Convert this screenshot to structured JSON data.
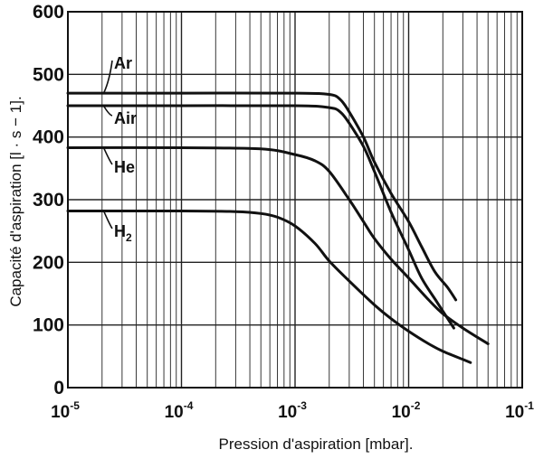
{
  "chart_data": {
    "type": "line",
    "xlabel": "Pression d'aspiration [mbar].",
    "ylabel": "Capacité d'aspiration [l · s − 1].",
    "x_scale": "log",
    "xlim": [
      1e-05,
      0.1
    ],
    "ylim": [
      0,
      600
    ],
    "grid": true,
    "x_ticks": [
      {
        "base": "10",
        "exp": "-5"
      },
      {
        "base": "10",
        "exp": "-4"
      },
      {
        "base": "10",
        "exp": "-3"
      },
      {
        "base": "10",
        "exp": "-2"
      },
      {
        "base": "10",
        "exp": "-1"
      }
    ],
    "y_ticks": [
      "0",
      "100",
      "200",
      "300",
      "400",
      "500",
      "600"
    ],
    "series": [
      {
        "name": "Ar",
        "name_sub": "",
        "x": [
          1e-05,
          0.0001,
          0.001,
          0.002,
          0.0025,
          0.003,
          0.004,
          0.005,
          0.007,
          0.01,
          0.013,
          0.017,
          0.022,
          0.026
        ],
        "y": [
          470,
          470,
          470,
          468,
          460,
          440,
          400,
          360,
          310,
          265,
          225,
          185,
          160,
          140
        ]
      },
      {
        "name": "Air",
        "name_sub": "",
        "x": [
          1e-05,
          0.0001,
          0.001,
          0.002,
          0.0025,
          0.003,
          0.004,
          0.005,
          0.007,
          0.01,
          0.013,
          0.018,
          0.025
        ],
        "y": [
          450,
          450,
          450,
          447,
          440,
          422,
          385,
          345,
          280,
          220,
          175,
          135,
          95
        ]
      },
      {
        "name": "He",
        "name_sub": "",
        "x": [
          1e-05,
          0.0001,
          0.0005,
          0.001,
          0.0015,
          0.002,
          0.003,
          0.004,
          0.005,
          0.007,
          0.01,
          0.015,
          0.02,
          0.03,
          0.05
        ],
        "y": [
          383,
          383,
          381,
          372,
          362,
          345,
          300,
          265,
          238,
          205,
          175,
          140,
          118,
          95,
          70
        ]
      },
      {
        "name": "H",
        "name_sub": "2",
        "x": [
          1e-05,
          0.0001,
          0.0003,
          0.0005,
          0.0007,
          0.001,
          0.0015,
          0.002,
          0.003,
          0.005,
          0.007,
          0.01,
          0.015,
          0.02,
          0.03,
          0.035
        ],
        "y": [
          282,
          282,
          281,
          278,
          272,
          258,
          230,
          202,
          170,
          132,
          110,
          90,
          70,
          58,
          45,
          40
        ]
      }
    ]
  }
}
